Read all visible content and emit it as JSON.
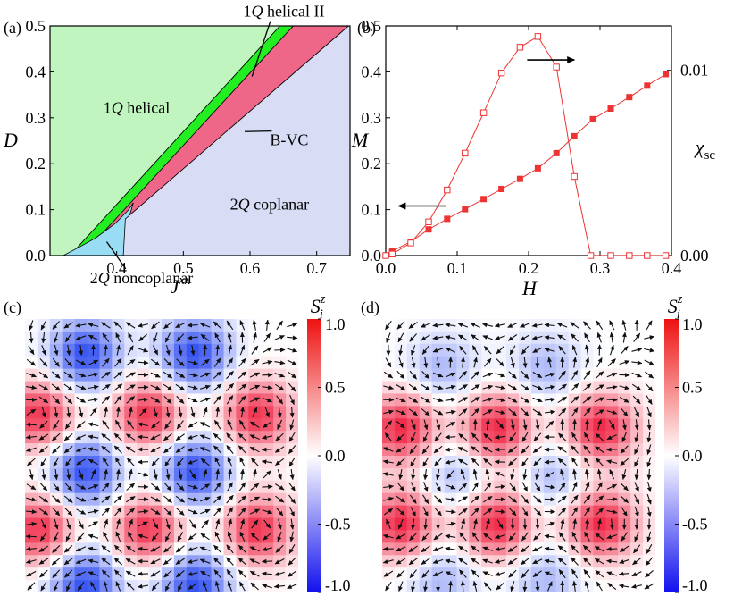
{
  "panel_labels": {
    "a": "(a)",
    "b": "(b)",
    "c": "(c)",
    "d": "(d)"
  },
  "colors": {
    "helical1Q": "#c0f5c0",
    "helical1QII": "#22ee22",
    "bvc": "#ee6688",
    "coplanar2Q": "#d8ddf5",
    "noncoplanar2Q": "#99ddf5",
    "series": "#ee3333",
    "skyrmion_pos": "#ee2233",
    "skyrmion_neg": "#2233ee"
  },
  "chart_data": [
    {
      "id": "a",
      "type": "area",
      "xlabel": "J^xx",
      "ylabel": "D",
      "xlim": [
        0.3,
        0.75
      ],
      "ylim": [
        0.0,
        0.5
      ],
      "xticks": [
        "0.4",
        "0.5",
        "0.6",
        "0.7"
      ],
      "xtick_values": [
        0.4,
        0.5,
        0.6,
        0.7
      ],
      "yticks": [
        "0.0",
        "0.1",
        "0.2",
        "0.3",
        "0.4",
        "0.5"
      ],
      "ytick_values": [
        0.0,
        0.1,
        0.2,
        0.3,
        0.4,
        0.5
      ],
      "regions": [
        {
          "name": "1Q helical",
          "color_key": "helical1Q",
          "polygon": [
            [
              0.3,
              0.0
            ],
            [
              0.3,
              0.5
            ],
            [
              0.645,
              0.5
            ],
            [
              0.33,
              0.0
            ]
          ]
        },
        {
          "name": "1Q helical II",
          "color_key": "helical1QII",
          "polygon": [
            [
              0.33,
              0.0
            ],
            [
              0.645,
              0.5
            ],
            [
              0.665,
              0.5
            ],
            [
              0.348,
              0.0
            ]
          ]
        },
        {
          "name": "B-VC",
          "color_key": "bvc",
          "polygon": [
            [
              0.348,
              0.0
            ],
            [
              0.665,
              0.5
            ],
            [
              0.748,
              0.5
            ],
            [
              0.413,
              0.08
            ],
            [
              0.41,
              0.0
            ]
          ]
        },
        {
          "name": "2Q noncoplanar",
          "color_key": "noncoplanar2Q",
          "polygon": [
            [
              0.32,
              0.0
            ],
            [
              0.346,
              0.02
            ],
            [
              0.368,
              0.038
            ],
            [
              0.398,
              0.07
            ],
            [
              0.418,
              0.1
            ],
            [
              0.425,
              0.115
            ],
            [
              0.418,
              0.08
            ],
            [
              0.41,
              0.0
            ]
          ]
        },
        {
          "name": "2Q coplanar",
          "color_key": "coplanar2Q",
          "polygon": [
            [
              0.41,
              0.0
            ],
            [
              0.413,
              0.08
            ],
            [
              0.748,
              0.5
            ],
            [
              0.75,
              0.5
            ],
            [
              0.75,
              0.0
            ]
          ]
        }
      ],
      "annotations": [
        {
          "text": "1Q helical",
          "label_at": [
            0.38,
            0.31
          ]
        },
        {
          "text": "1Q helical II",
          "label_at": [
            0.59,
            0.52
          ],
          "points_to": [
            0.603,
            0.39
          ]
        },
        {
          "text": "B-VC",
          "label_at": [
            0.63,
            0.24
          ],
          "points_to": [
            0.592,
            0.27
          ]
        },
        {
          "text": "2Q coplanar",
          "label_at": [
            0.57,
            0.1
          ]
        },
        {
          "text": "2Q noncoplanar",
          "label_at": [
            0.36,
            -0.06
          ],
          "points_to": [
            0.385,
            0.03
          ]
        }
      ]
    },
    {
      "id": "b",
      "type": "scatter",
      "xlabel": "H",
      "ylabel": "M",
      "y2label": "χsc",
      "xlim": [
        0.0,
        0.4
      ],
      "ylim": [
        0.0,
        0.5
      ],
      "y2lim": [
        0.0,
        0.0124
      ],
      "xticks": [
        "0.0",
        "0.1",
        "0.2",
        "0.3",
        "0.4"
      ],
      "xtick_values": [
        0.0,
        0.1,
        0.2,
        0.3,
        0.4
      ],
      "yticks": [
        "0.0",
        "0.1",
        "0.2",
        "0.3",
        "0.4",
        "0.5"
      ],
      "ytick_values": [
        0.0,
        0.1,
        0.2,
        0.3,
        0.4,
        0.5
      ],
      "y2ticks": [
        "0.00",
        "0.01"
      ],
      "y2tick_values": [
        0.0,
        0.01
      ],
      "series": [
        {
          "name": "M",
          "axis": "left",
          "marker": "filled-square",
          "x": [
            0.0,
            0.009,
            0.035,
            0.06,
            0.086,
            0.111,
            0.137,
            0.162,
            0.188,
            0.213,
            0.239,
            0.264,
            0.29,
            0.315,
            0.341,
            0.366,
            0.392
          ],
          "y": [
            0.0,
            0.01,
            0.03,
            0.057,
            0.08,
            0.101,
            0.123,
            0.145,
            0.167,
            0.19,
            0.223,
            0.26,
            0.297,
            0.32,
            0.345,
            0.37,
            0.395
          ]
        },
        {
          "name": "χsc",
          "axis": "right",
          "marker": "open-square",
          "x": [
            0.0,
            0.009,
            0.035,
            0.06,
            0.086,
            0.111,
            0.137,
            0.162,
            0.188,
            0.213,
            0.239,
            0.264,
            0.287,
            0.315,
            0.341,
            0.366,
            0.392
          ],
          "y": [
            0.0,
            8e-05,
            0.00068,
            0.00182,
            0.00354,
            0.00553,
            0.00771,
            0.00986,
            0.01125,
            0.01183,
            0.01018,
            0.00427,
            0.0,
            0.0,
            0.0,
            0.0,
            0.0
          ]
        }
      ],
      "arrows": [
        {
          "direction": "left",
          "from": [
            0.084,
            0.108
          ],
          "to": [
            0.018,
            0.108
          ]
        },
        {
          "direction": "right",
          "from": [
            0.198,
            0.426
          ],
          "to": [
            0.264,
            0.426
          ]
        }
      ]
    },
    {
      "id": "c",
      "type": "heatmap",
      "colorbar_label": "S_i^z",
      "colorbar_ticks": [
        "1.0",
        "0.5",
        "0.0",
        "-0.5",
        "-1.0"
      ],
      "colorbar_values": [
        1.0,
        0.5,
        0.0,
        -0.5,
        -1.0
      ],
      "centers": [
        {
          "x": 0.22,
          "y": 0.13,
          "s": -0.85
        },
        {
          "x": 0.62,
          "y": 0.13,
          "s": -0.85
        },
        {
          "x": 0.05,
          "y": 0.35,
          "s": 0.85
        },
        {
          "x": 0.45,
          "y": 0.35,
          "s": 0.85
        },
        {
          "x": 0.85,
          "y": 0.35,
          "s": 0.85
        },
        {
          "x": 0.22,
          "y": 0.56,
          "s": -0.85
        },
        {
          "x": 0.62,
          "y": 0.56,
          "s": -0.85
        },
        {
          "x": 0.05,
          "y": 0.77,
          "s": 0.85
        },
        {
          "x": 0.45,
          "y": 0.77,
          "s": 0.85
        },
        {
          "x": 0.85,
          "y": 0.77,
          "s": 0.85
        },
        {
          "x": 0.22,
          "y": 0.97,
          "s": -0.85
        },
        {
          "x": 0.62,
          "y": 0.97,
          "s": -0.85
        }
      ]
    },
    {
      "id": "d",
      "type": "heatmap",
      "colorbar_label": "S_i^z",
      "colorbar_ticks": [
        "1.0",
        "0.5",
        "0.0",
        "-0.5",
        "-1.0"
      ],
      "colorbar_values": [
        1.0,
        0.5,
        0.0,
        -0.5,
        -1.0
      ],
      "centers": [
        {
          "x": 0.22,
          "y": 0.18,
          "s": -0.35
        },
        {
          "x": 0.6,
          "y": 0.18,
          "s": -0.35
        },
        {
          "x": 0.07,
          "y": 0.4,
          "s": 0.9
        },
        {
          "x": 0.42,
          "y": 0.4,
          "s": 0.9
        },
        {
          "x": 0.8,
          "y": 0.4,
          "s": 0.9
        },
        {
          "x": 0.27,
          "y": 0.58,
          "s": -0.35
        },
        {
          "x": 0.63,
          "y": 0.58,
          "s": -0.35
        },
        {
          "x": 0.07,
          "y": 0.75,
          "s": 0.9
        },
        {
          "x": 0.42,
          "y": 0.75,
          "s": 0.9
        },
        {
          "x": 0.8,
          "y": 0.75,
          "s": 0.9
        },
        {
          "x": 0.22,
          "y": 0.95,
          "s": -0.35
        },
        {
          "x": 0.6,
          "y": 0.95,
          "s": -0.35
        }
      ]
    }
  ]
}
